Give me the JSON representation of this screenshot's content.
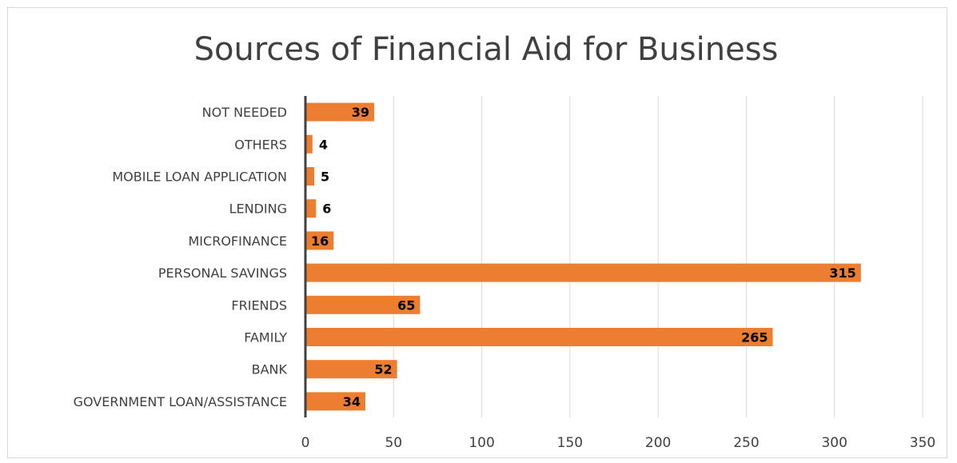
{
  "chart_data": {
    "type": "bar",
    "orientation": "horizontal",
    "title": "Sources of Financial Aid for Business",
    "xlabel": "",
    "ylabel": "",
    "categories": [
      "GOVERNMENT LOAN/ASSISTANCE",
      "BANK",
      "FAMILY",
      "FRIENDS",
      "PERSONAL SAVINGS",
      "MICROFINANCE",
      "LENDING",
      "MOBILE LOAN APPLICATION",
      "OTHERS",
      "NOT NEEDED"
    ],
    "values": [
      34,
      52,
      265,
      65,
      315,
      16,
      6,
      5,
      4,
      39
    ],
    "xlim": [
      0,
      350
    ],
    "xticks": [
      0,
      50,
      100,
      150,
      200,
      250,
      300,
      350
    ],
    "grid": "vertical",
    "legend": "none",
    "bar_color": "#ED7D31"
  }
}
